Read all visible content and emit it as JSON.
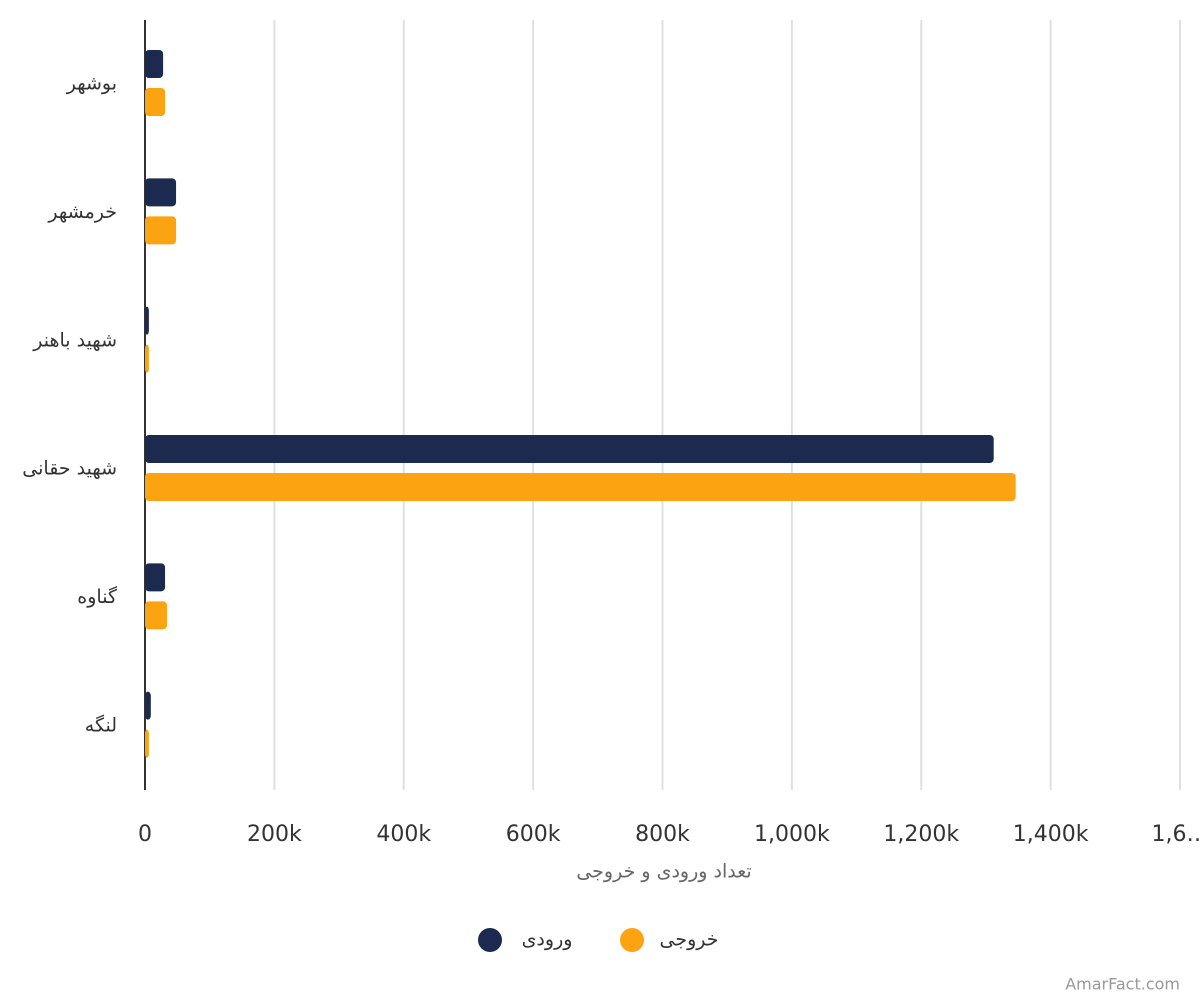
{
  "chart_data": {
    "type": "bar",
    "orientation": "horizontal",
    "categories": [
      "بوشهر",
      "خرمشهر",
      "شهید باهنر",
      "شهید حقانی",
      "گناوه",
      "لنگه"
    ],
    "series": [
      {
        "name": "ورودی",
        "color": "#1b2a4e",
        "values": [
          28000,
          48000,
          6000,
          1312000,
          31000,
          9000
        ]
      },
      {
        "name": "خروجی",
        "color": "#fca311",
        "values": [
          31000,
          48000,
          6000,
          1346000,
          34000,
          6000
        ]
      }
    ],
    "xlabel": "تعداد ورودی و خروجی",
    "xlim": [
      0,
      1600000
    ],
    "xticks": [
      0,
      {
        "value": 200000,
        "label": "200k"
      },
      {
        "value": 400000,
        "label": "400k"
      },
      {
        "value": 600000,
        "label": "600k"
      },
      {
        "value": 800000,
        "label": "800k"
      },
      {
        "value": 1000000,
        "label": "1,000k"
      },
      {
        "value": 1200000,
        "label": "1,200k"
      },
      {
        "value": 1400000,
        "label": "1,400k"
      },
      {
        "value": 1600000,
        "label": "1,6…"
      }
    ],
    "grid": true,
    "legend": "bottom",
    "credit": "AmarFact.com"
  }
}
